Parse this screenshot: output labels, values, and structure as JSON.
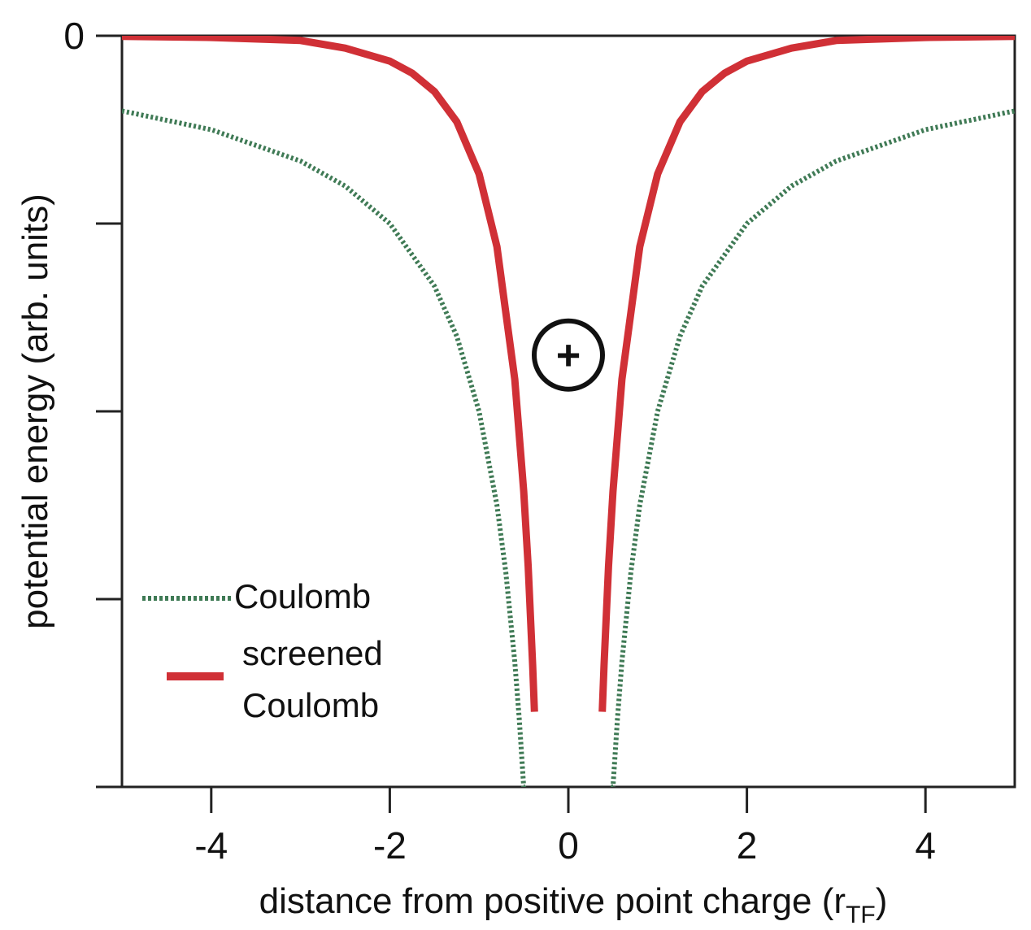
{
  "chart_data": {
    "type": "line",
    "title": "",
    "xlabel": "distance from positive point charge (r",
    "xlabel_subscript": "TF",
    "xlabel_close": ")",
    "ylabel": "potential energy (arb. units)",
    "xlim": [
      -5,
      5
    ],
    "ylim": [
      -4,
      0
    ],
    "x_ticks": [
      -4,
      -2,
      0,
      2,
      4
    ],
    "x_tick_labels": [
      "-4",
      "-2",
      "0",
      "2",
      "4"
    ],
    "y_ticks": [
      0,
      -1,
      -2,
      -3,
      -4
    ],
    "y_tick_labels": [
      "0",
      "",
      "",
      "",
      ""
    ],
    "annotation": "+",
    "annotation_x": 0,
    "annotation_y": -1.7,
    "series": [
      {
        "name": "Coulomb",
        "style": "dotted",
        "color": "#3f7a55",
        "x": [
          -5,
          -4,
          -3,
          -2.5,
          -2,
          -1.5,
          -1.25,
          -1,
          -0.8,
          -0.7,
          -0.6,
          -0.55,
          -0.5,
          -0.48,
          0.48,
          0.5,
          0.55,
          0.6,
          0.7,
          0.8,
          1,
          1.25,
          1.5,
          2,
          2.5,
          3,
          4,
          5
        ],
        "y": [
          -0.4,
          -0.5,
          -0.667,
          -0.8,
          -1.0,
          -1.333,
          -1.6,
          -2.0,
          -2.5,
          -2.857,
          -3.333,
          -3.636,
          -4.0,
          -4.0,
          -4.0,
          -4.0,
          -3.636,
          -3.333,
          -2.857,
          -2.5,
          -2.0,
          -1.6,
          -1.333,
          -1.0,
          -0.8,
          -0.667,
          -0.5,
          -0.4
        ]
      },
      {
        "name": "screened Coulomb",
        "style": "solid",
        "color": "#d03036",
        "x": [
          -5,
          -4,
          -3,
          -2.5,
          -2,
          -1.75,
          -1.5,
          -1.25,
          -1,
          -0.8,
          -0.6,
          -0.5,
          -0.45,
          -0.4,
          -0.38,
          0.38,
          0.4,
          0.45,
          0.5,
          0.6,
          0.8,
          1,
          1.25,
          1.5,
          1.75,
          2,
          2.5,
          3,
          4,
          5
        ],
        "y": [
          -0.003,
          -0.009,
          -0.025,
          -0.066,
          -0.135,
          -0.199,
          -0.297,
          -0.458,
          -0.736,
          -1.124,
          -1.829,
          -2.426,
          -2.826,
          -3.352,
          -3.6,
          -3.6,
          -3.352,
          -2.826,
          -2.426,
          -1.829,
          -1.124,
          -0.736,
          -0.458,
          -0.297,
          -0.199,
          -0.135,
          -0.066,
          -0.025,
          -0.009,
          -0.003
        ]
      }
    ],
    "legend": {
      "placement": "lower-left",
      "entries": [
        {
          "label": "Coulomb",
          "style": "dotted"
        },
        {
          "label_line1": "screened",
          "label_line2": "Coulomb",
          "style": "solid"
        }
      ]
    }
  }
}
